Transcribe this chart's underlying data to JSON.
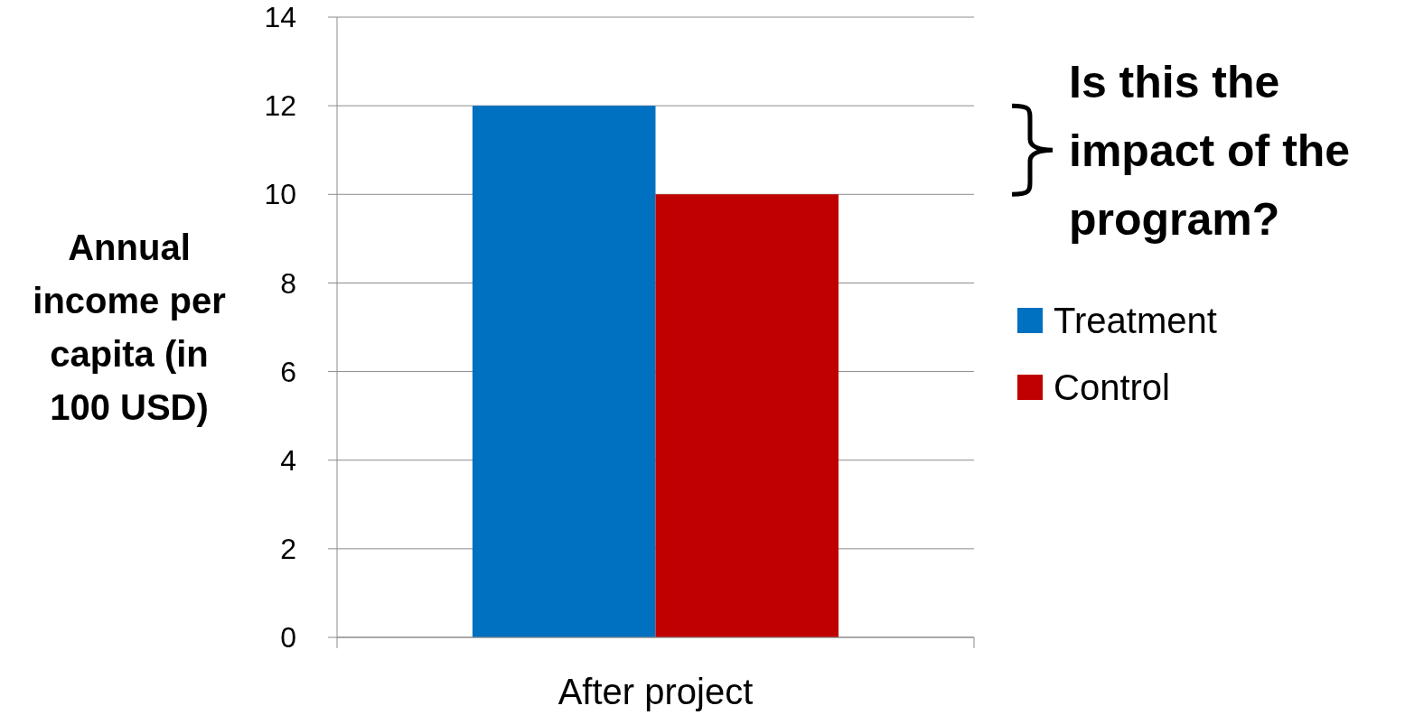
{
  "chart_data": {
    "type": "bar",
    "categories": [
      "After project"
    ],
    "series": [
      {
        "name": "Treatment",
        "color": "#0070c0",
        "values": [
          12
        ]
      },
      {
        "name": "Control",
        "color": "#c00000",
        "values": [
          10
        ]
      }
    ],
    "ylabel": "Annual income per capita (in 100 USD)",
    "ylim": [
      0,
      14
    ],
    "yticks": [
      0,
      2,
      4,
      6,
      8,
      10,
      12,
      14
    ],
    "grid": "y",
    "legend": "right",
    "annotations": [
      "Is this the impact of the program?"
    ]
  }
}
